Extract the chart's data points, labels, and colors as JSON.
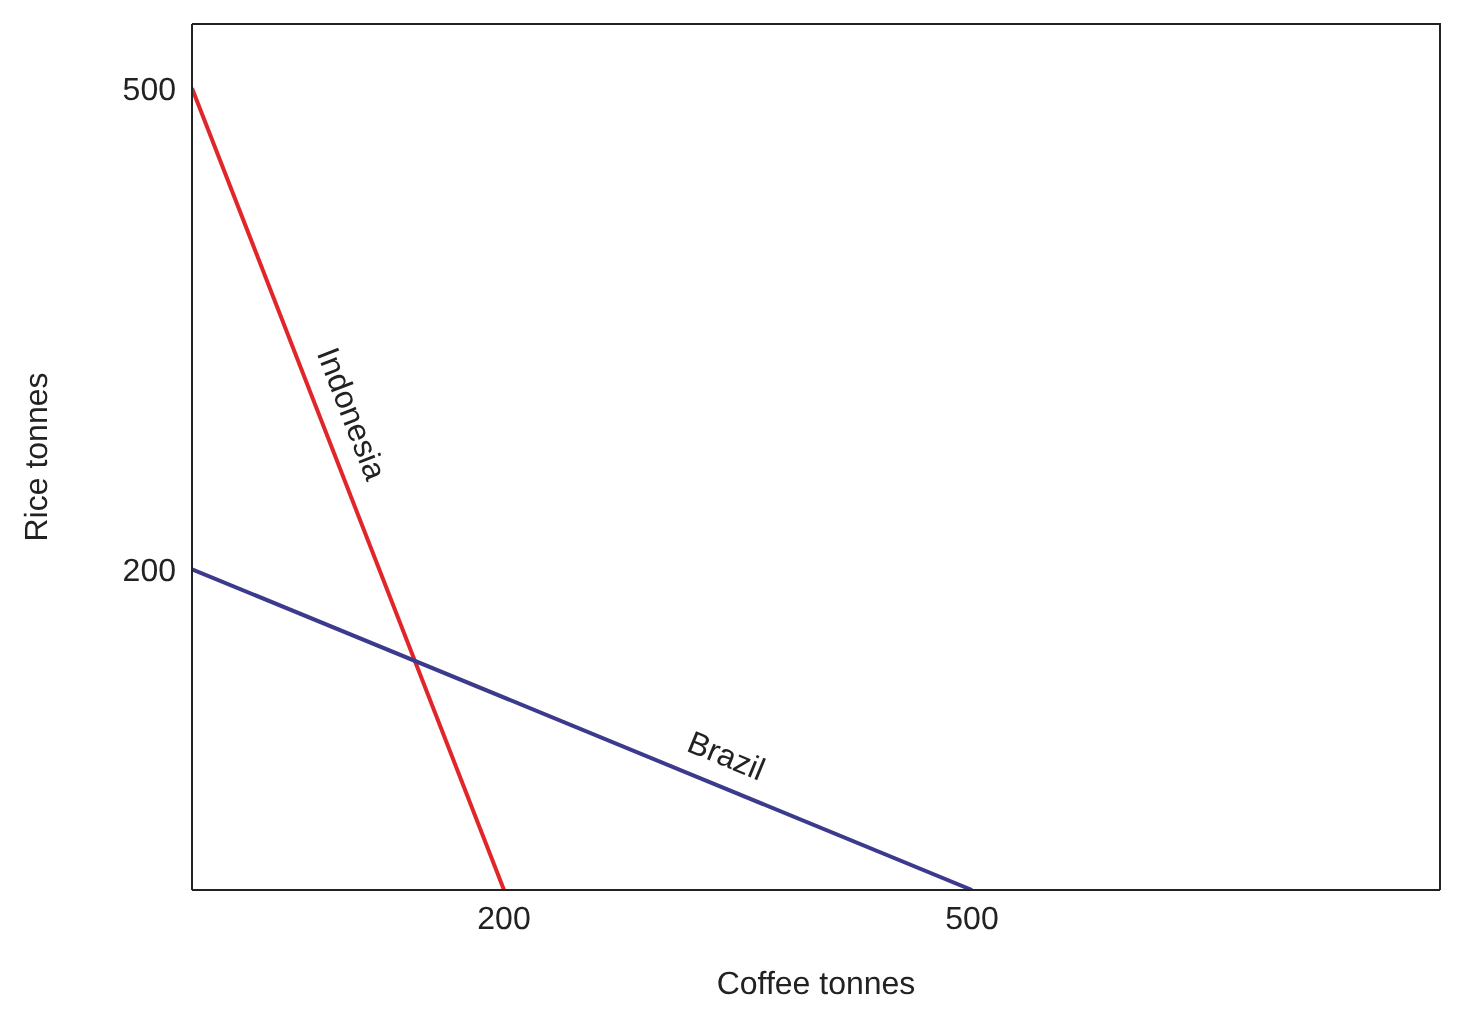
{
  "chart_data": {
    "type": "line",
    "xlabel": "Coffee tonnes",
    "ylabel": "Rice tonnes",
    "xlim": [
      0,
      800
    ],
    "ylim": [
      0,
      540
    ],
    "xticks": [
      200,
      500
    ],
    "yticks": [
      200,
      500
    ],
    "marker": "none",
    "line_style": "solid",
    "series": [
      {
        "name": "Indonesia",
        "color": "#e0262b",
        "x": [
          0,
          200
        ],
        "values": [
          500,
          0
        ]
      },
      {
        "name": "Brazil",
        "color": "#3c3a8c",
        "x": [
          0,
          500
        ],
        "values": [
          200,
          0
        ]
      }
    ]
  }
}
